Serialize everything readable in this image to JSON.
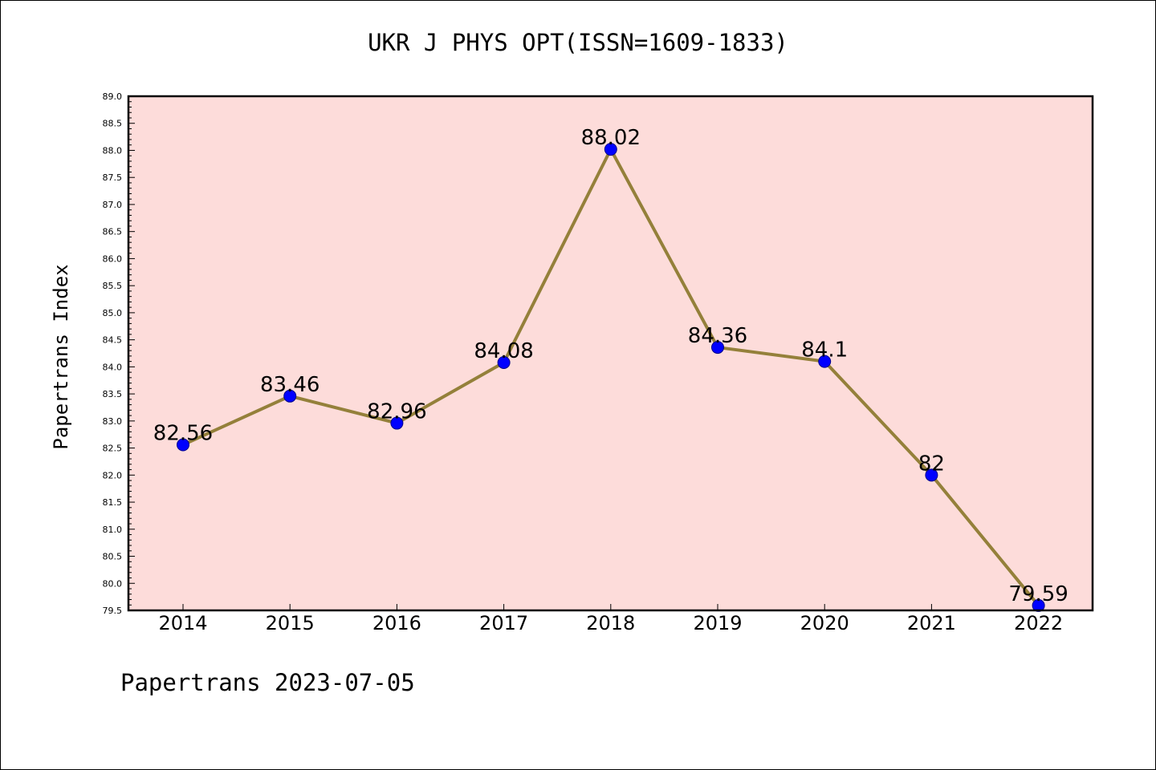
{
  "title": "UKR J PHYS OPT(ISSN=1609-1833)",
  "footer": "Papertrans 2023-07-05",
  "chart_data": {
    "type": "line",
    "title": "UKR J PHYS OPT(ISSN=1609-1833)",
    "xlabel": "",
    "ylabel": "Papertrans Index",
    "categories": [
      "2014",
      "2015",
      "2016",
      "2017",
      "2018",
      "2019",
      "2020",
      "2021",
      "2022"
    ],
    "series": [
      {
        "values": [
          82.56,
          83.46,
          82.96,
          84.08,
          88.02,
          84.36,
          84.1,
          82,
          79.59
        ],
        "labels": [
          "82.56",
          "83.46",
          "82.96",
          "84.08",
          "88.02",
          "84.36",
          "84.1",
          "82",
          "79.59"
        ]
      }
    ],
    "ylim": [
      79.5,
      89.0
    ],
    "yticks": [
      "79.5",
      "80.0",
      "80.5",
      "81.0",
      "81.5",
      "82.0",
      "82.5",
      "83.0",
      "83.5",
      "84.0",
      "84.5",
      "85.0",
      "85.5",
      "86.0",
      "86.5",
      "87.0",
      "87.5",
      "88.0",
      "88.5",
      "89.0"
    ],
    "grid": false,
    "colors": {
      "plot_bg": "#FDDCDA",
      "line": "#94803A",
      "marker": "#0000FF"
    }
  }
}
